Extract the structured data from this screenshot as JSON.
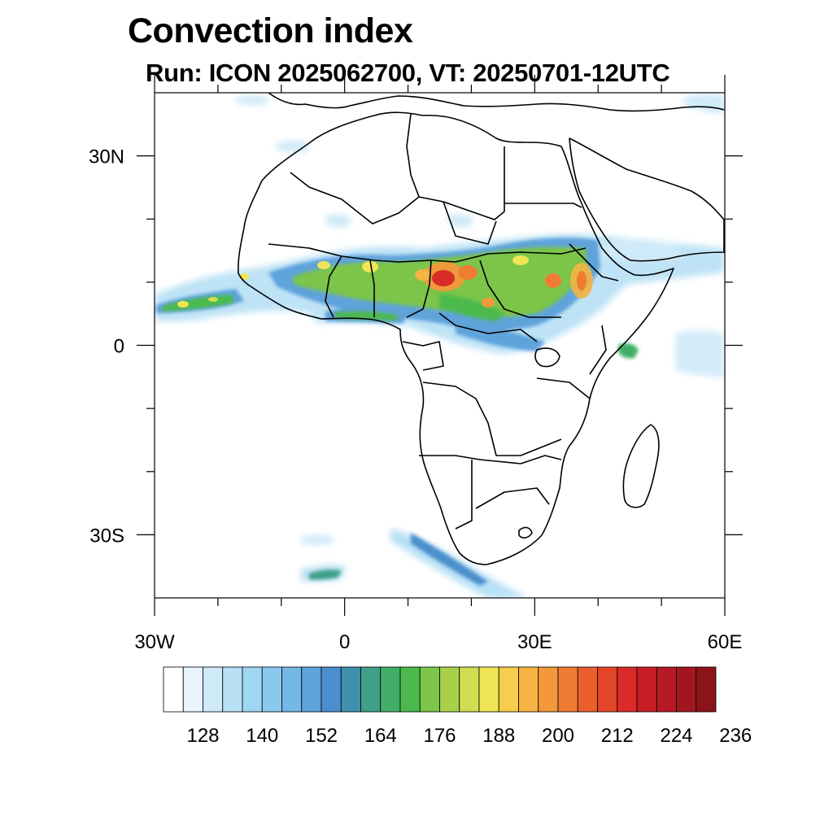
{
  "title": "Convection index",
  "subtitle": "Run: ICON 2025062700,  VT: 20250701-12UTC",
  "map": {
    "lon_range": [
      -30,
      60
    ],
    "lat_range": [
      -40,
      40
    ],
    "lat_ticks": [
      {
        "value": 30,
        "label": "30N"
      },
      {
        "value": 0,
        "label": "0"
      },
      {
        "value": -30,
        "label": "30S"
      }
    ],
    "lon_ticks": [
      {
        "value": -30,
        "label": "30W"
      },
      {
        "value": 0,
        "label": "0"
      },
      {
        "value": 30,
        "label": "30E"
      },
      {
        "value": 60,
        "label": "60E"
      }
    ]
  },
  "colorbar": {
    "labels": [
      "128",
      "140",
      "152",
      "164",
      "176",
      "188",
      "200",
      "212",
      "224",
      "236"
    ],
    "colors": [
      "#ffffff",
      "#e8f5fc",
      "#cfeaf8",
      "#b7e0f5",
      "#9fd6f2",
      "#8ac8ee",
      "#74b8e6",
      "#5ea3db",
      "#4b8fce",
      "#3f90ac",
      "#3f9f87",
      "#40ae67",
      "#4bba4c",
      "#7cc54a",
      "#a9d04b",
      "#d2dc50",
      "#f0e554",
      "#f7cd4c",
      "#f5b444",
      "#f3983c",
      "#f07c33",
      "#ea5f2c",
      "#e34528",
      "#d92b28",
      "#c91d26",
      "#b71a24",
      "#a2171f",
      "#8c131a"
    ]
  }
}
